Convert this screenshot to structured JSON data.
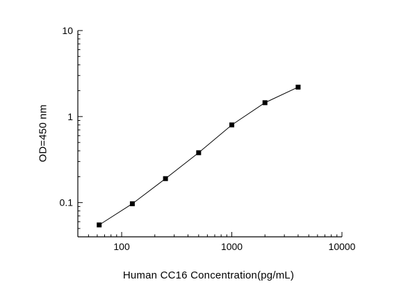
{
  "figure": {
    "background": "#ffffff",
    "axis_color": "#000000"
  },
  "chart_data": {
    "type": "line",
    "x": [
      62.5,
      125,
      250,
      500,
      1000,
      2000,
      4000
    ],
    "y": [
      0.055,
      0.097,
      0.19,
      0.38,
      0.8,
      1.45,
      2.2
    ],
    "title": "",
    "xlabel": "Human CC16 Concentration(pg/mL)",
    "ylabel": "OD=450 nm",
    "x_scale": "log",
    "y_scale": "log",
    "xlim": [
      40,
      10000
    ],
    "ylim": [
      0.04,
      10
    ],
    "x_ticks": [
      100,
      1000,
      10000
    ],
    "x_tick_labels": [
      "100",
      "1000",
      "10000"
    ],
    "y_ticks": [
      0.1,
      1,
      10
    ],
    "y_tick_labels": [
      "0.1",
      "1",
      "10"
    ],
    "marker": "filled-square",
    "marker_color": "#000000",
    "line_color": "#000000",
    "grid": false,
    "legend": null
  }
}
